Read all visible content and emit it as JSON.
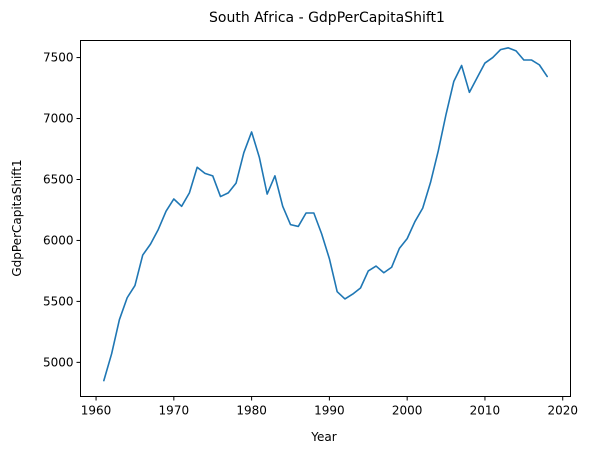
{
  "chart_data": {
    "type": "line",
    "title": "South Africa - GdpPerCapitaShift1",
    "xlabel": "Year",
    "ylabel": "GdpPerCapitaShift1",
    "xlim": [
      1958,
      2021
    ],
    "ylim": [
      4720,
      7640
    ],
    "x_ticks": [
      1960,
      1970,
      1980,
      1990,
      2000,
      2010,
      2020
    ],
    "y_ticks": [
      5000,
      5500,
      6000,
      6500,
      7000,
      7500
    ],
    "grid": false,
    "legend": "none",
    "series": [
      {
        "color": "#1f77b4",
        "x": [
          1961,
          1962,
          1963,
          1964,
          1965,
          1966,
          1967,
          1968,
          1969,
          1970,
          1971,
          1972,
          1973,
          1974,
          1975,
          1976,
          1977,
          1978,
          1979,
          1980,
          1981,
          1982,
          1983,
          1984,
          1985,
          1986,
          1987,
          1988,
          1989,
          1990,
          1991,
          1992,
          1993,
          1994,
          1995,
          1996,
          1997,
          1998,
          1999,
          2000,
          2001,
          2002,
          2003,
          2004,
          2005,
          2006,
          2007,
          2008,
          2009,
          2010,
          2011,
          2012,
          2013,
          2014,
          2015,
          2016,
          2017,
          2018
        ],
        "y": [
          4850,
          5070,
          5350,
          5530,
          5630,
          5880,
          5970,
          6090,
          6240,
          6340,
          6280,
          6390,
          6600,
          6550,
          6530,
          6360,
          6390,
          6470,
          6720,
          6890,
          6680,
          6380,
          6530,
          6280,
          6130,
          6115,
          6225,
          6225,
          6055,
          5850,
          5580,
          5520,
          5560,
          5610,
          5750,
          5790,
          5735,
          5780,
          5935,
          6015,
          6155,
          6265,
          6475,
          6735,
          7035,
          7305,
          7435,
          7215,
          7335,
          7455,
          7500,
          7565,
          7580,
          7555,
          7480,
          7480,
          7440,
          7345
        ]
      }
    ]
  }
}
